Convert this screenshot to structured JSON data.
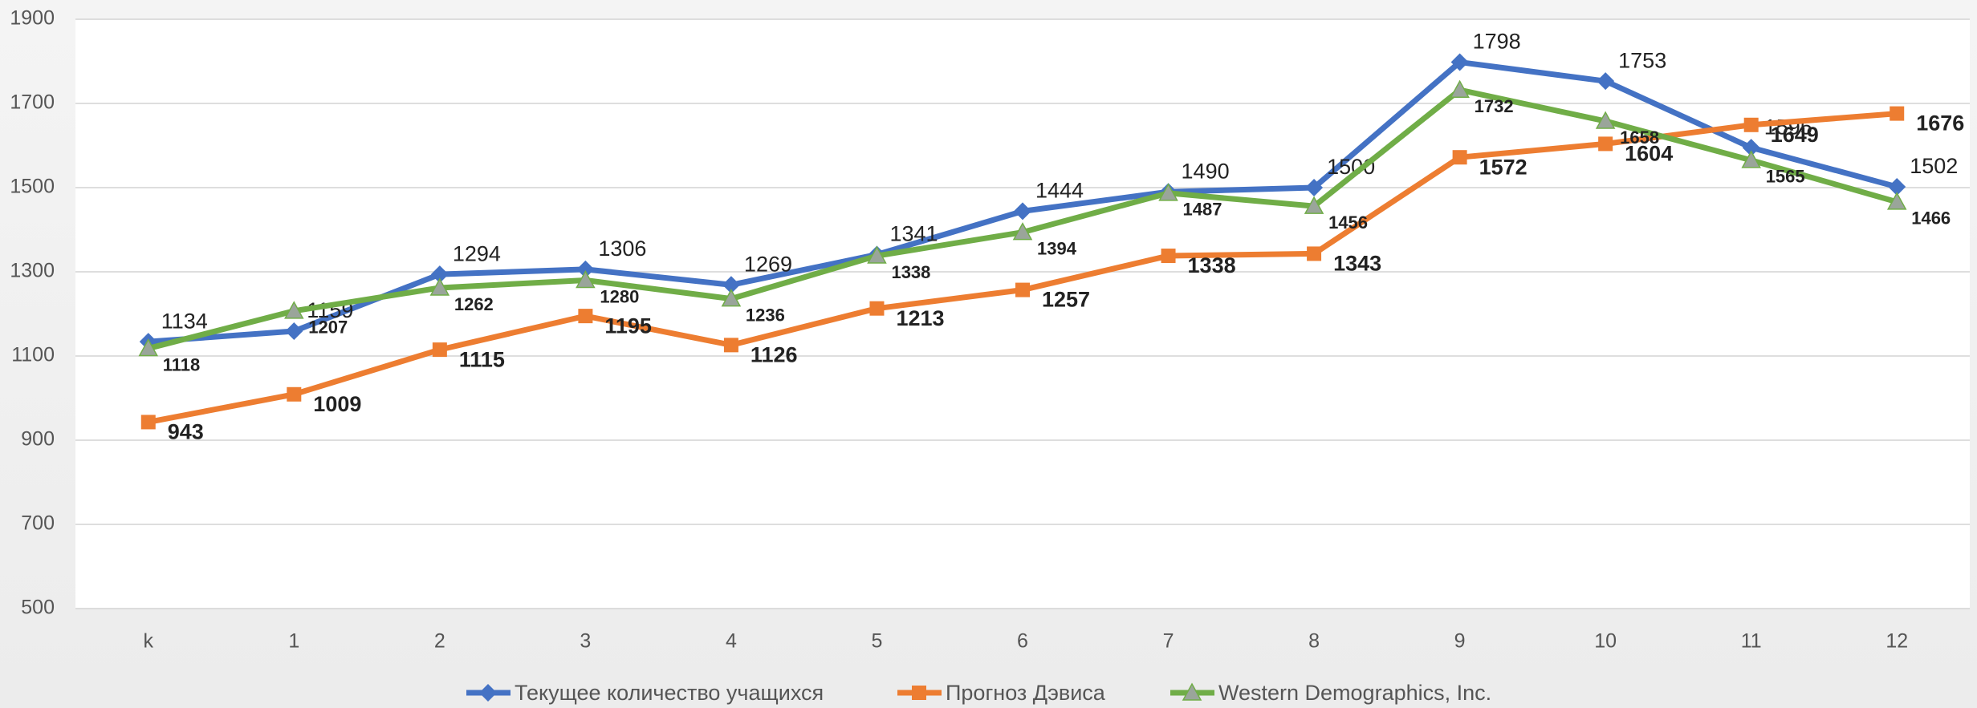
{
  "chart_data": {
    "type": "line",
    "categories": [
      "k",
      "1",
      "2",
      "3",
      "4",
      "5",
      "6",
      "7",
      "8",
      "9",
      "10",
      "11",
      "12"
    ],
    "series": [
      {
        "name": "Текущее количество учащихся",
        "color": "#4472c4",
        "values": [
          1134,
          1159,
          1294,
          1306,
          1269,
          1341,
          1444,
          1490,
          1500,
          1798,
          1753,
          1595,
          1502
        ]
      },
      {
        "name": "Прогноз Дэвиса",
        "color": "#ed7d31",
        "values": [
          943,
          1009,
          1115,
          1195,
          1126,
          1213,
          1257,
          1338,
          1343,
          1572,
          1604,
          1649,
          1676
        ]
      },
      {
        "name": "Western Demographics, Inc.",
        "color": "#70ad47",
        "values": [
          1118,
          1207,
          1262,
          1280,
          1236,
          1338,
          1394,
          1487,
          1456,
          1732,
          1658,
          1565,
          1466
        ]
      }
    ],
    "ylim": [
      500,
      1900
    ],
    "yticks": [
      500,
      700,
      900,
      1100,
      1300,
      1500,
      1700,
      1900
    ],
    "grid": true,
    "legend": "bottom"
  }
}
